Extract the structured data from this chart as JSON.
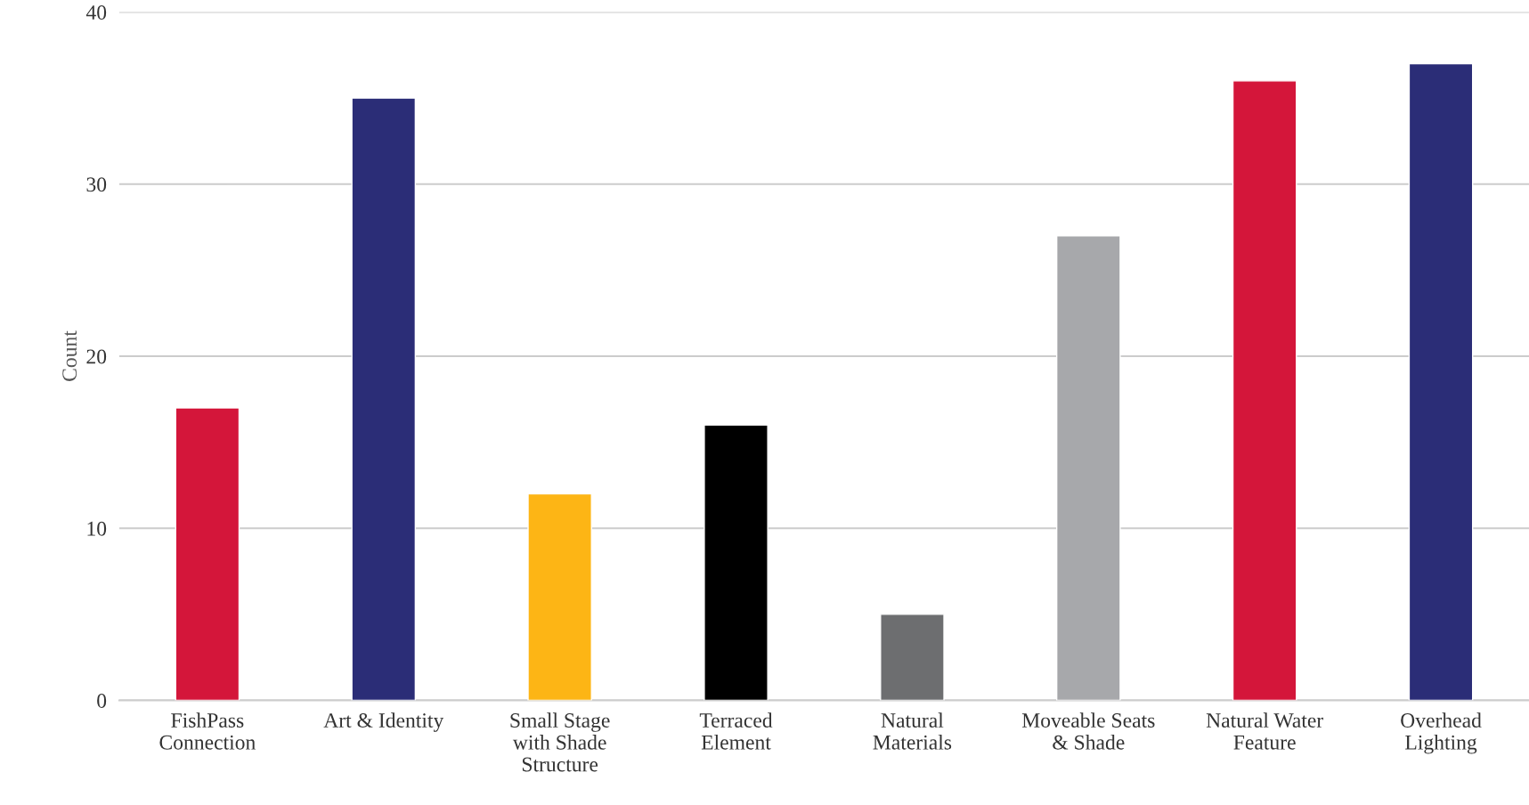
{
  "chart_data": {
    "type": "bar",
    "ylabel": "Count",
    "categories": [
      "FishPass\nConnection",
      "Art & Identity",
      "Small Stage\nwith Shade\nStructure",
      "Terraced\nElement",
      "Natural\nMaterials",
      "Moveable Seats\n& Shade",
      "Natural Water\nFeature",
      "Overhead\nLighting"
    ],
    "values": [
      17,
      35,
      12,
      16,
      5,
      27,
      36,
      37
    ],
    "colors": [
      "#d4163a",
      "#2b2d77",
      "#fdb515",
      "#000000",
      "#6d6e70",
      "#a7a8ab",
      "#d4163a",
      "#2b2d77"
    ],
    "ylim": [
      0,
      40
    ],
    "yticks": [
      0,
      10,
      20,
      30,
      40
    ],
    "grid": "y",
    "legend": false
  }
}
